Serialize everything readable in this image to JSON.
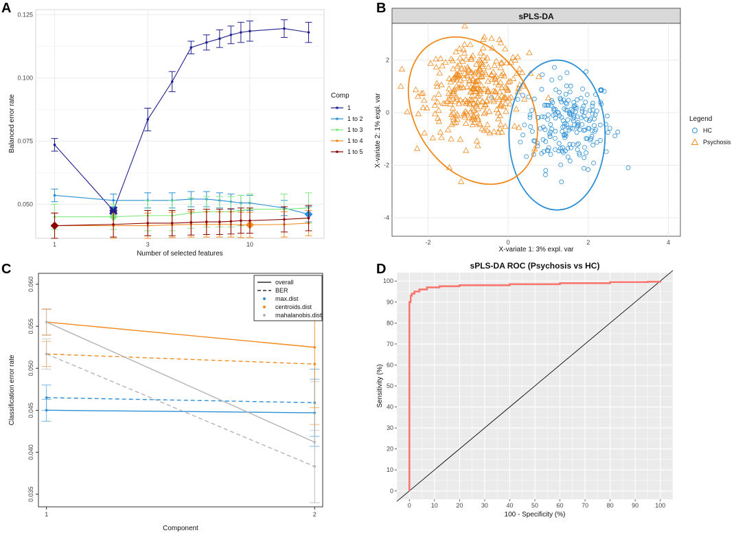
{
  "panel_labels": {
    "A": "A",
    "B": "B",
    "C": "C",
    "D": "D"
  },
  "chart_data": [
    {
      "id": "A",
      "type": "line",
      "xlabel": "Number of selected features",
      "ylabel": "Balanced error rate",
      "xscale": "log",
      "xticks": [
        1,
        3,
        10
      ],
      "yticks": [
        0.05,
        0.075,
        0.1,
        0.125
      ],
      "ytick_labels": [
        "0.050",
        "0.075",
        "0.100",
        "0.125"
      ],
      "ylim": [
        0.0365,
        0.127
      ],
      "xlim": [
        0.8,
        24
      ],
      "legend_title": "Comp",
      "x": [
        1,
        2,
        3,
        4,
        5,
        6,
        7,
        8,
        9,
        10,
        15,
        20
      ],
      "series": [
        {
          "name": "1",
          "color": "#1f1f8f",
          "values": [
            0.0735,
            0.0475,
            0.0835,
            0.0985,
            0.112,
            0.114,
            0.1155,
            0.117,
            0.118,
            0.1185,
            0.1195,
            0.118
          ],
          "err": [
            0.0025,
            0.0015,
            0.0045,
            0.004,
            0.0025,
            0.003,
            0.0035,
            0.0035,
            0.004,
            0.004,
            0.0035,
            0.004
          ],
          "opt_x": 2
        },
        {
          "name": "1 to 2",
          "color": "#2b8fd6",
          "values": [
            0.0535,
            0.0515,
            0.0515,
            0.0515,
            0.052,
            0.052,
            0.0515,
            0.051,
            0.0505,
            0.0505,
            0.0485,
            0.046
          ],
          "err": [
            0.0025,
            0.0025,
            0.003,
            0.003,
            0.003,
            0.003,
            0.003,
            0.003,
            0.003,
            0.003,
            0.003,
            0.003
          ],
          "opt_x": 20
        },
        {
          "name": "1 to 3",
          "color": "#7be87b",
          "values": [
            0.045,
            0.045,
            0.0455,
            0.0455,
            0.0465,
            0.047,
            0.047,
            0.047,
            0.0475,
            0.048,
            0.048,
            0.0485
          ],
          "err": [
            0.005,
            0.005,
            0.006,
            0.006,
            0.006,
            0.006,
            0.006,
            0.006,
            0.006,
            0.006,
            0.006,
            0.006
          ],
          "opt_x": 2
        },
        {
          "name": "1 to 4",
          "color": "#f08a1c",
          "values": [
            0.0415,
            0.0415,
            0.0415,
            0.0418,
            0.042,
            0.042,
            0.042,
            0.042,
            0.0418,
            0.0418,
            0.042,
            0.0425
          ],
          "err": [
            0.005,
            0.005,
            0.005,
            0.005,
            0.005,
            0.005,
            0.005,
            0.005,
            0.005,
            0.005,
            0.005,
            0.005
          ],
          "opt_x": 10
        },
        {
          "name": "1 to 5",
          "color": "#8b0000",
          "values": [
            0.0415,
            0.042,
            0.0425,
            0.0425,
            0.0428,
            0.043,
            0.043,
            0.0432,
            0.0435,
            0.0435,
            0.044,
            0.0445
          ],
          "err": [
            0.005,
            0.005,
            0.005,
            0.005,
            0.005,
            0.005,
            0.005,
            0.005,
            0.005,
            0.005,
            0.005,
            0.005
          ],
          "opt_x": 1
        }
      ]
    },
    {
      "id": "B",
      "type": "scatter",
      "title": "sPLS-DA",
      "xlabel": "X-variate 1: 3% expl. var",
      "ylabel": "X-variate 2: 1% expl. var",
      "xlim": [
        -2.9,
        4.3
      ],
      "ylim": [
        -4.7,
        3.4
      ],
      "xticks": [
        -2,
        0,
        2,
        4
      ],
      "yticks": [
        -4,
        -2,
        0,
        2
      ],
      "legend_title": "Legend",
      "groups": [
        {
          "name": "HC",
          "color": "#2b8fd6",
          "marker": "circle",
          "n": 210,
          "center": [
            1.5,
            -0.4
          ],
          "spread": [
            0.55,
            0.85
          ],
          "ellipse": {
            "cx": 1.22,
            "cy": -0.85,
            "rx": 1.2,
            "ry": 2.85,
            "angle": 0
          }
        },
        {
          "name": "Psychosis",
          "color": "#f08a1c",
          "marker": "triangle",
          "n": 320,
          "center": [
            -0.8,
            0.8
          ],
          "spread": [
            0.65,
            0.85
          ],
          "ellipse": {
            "cx": -0.88,
            "cy": 0.08,
            "rx": 1.45,
            "ry": 3.0,
            "angle": -32
          }
        }
      ]
    },
    {
      "id": "C",
      "type": "line",
      "xlabel": "Component",
      "ylabel": "Classification error rate",
      "x": [
        1,
        2
      ],
      "xticks": [
        1,
        2
      ],
      "xlim": [
        0.97,
        2.03
      ],
      "yticks": [
        0.035,
        0.04,
        0.045,
        0.05,
        0.055,
        0.06
      ],
      "ytick_labels": [
        "0.035",
        "0.040",
        "0.045",
        "0.050",
        "0.055",
        "0.060"
      ],
      "ylim": [
        0.0335,
        0.0613
      ],
      "legend": {
        "overall": "overall",
        "ber": "BER",
        "max_dist": "max.dist",
        "centroids_dist": "centroids.dist",
        "mahalanobis_dist": "mahalanobis.dist"
      },
      "series": [
        {
          "name": "max.dist overall",
          "color": "#2b8fd6",
          "dash": false,
          "values": [
            0.045,
            0.0447
          ],
          "err": [
            0.0013,
            0.004
          ]
        },
        {
          "name": "max.dist BER",
          "color": "#2b8fd6",
          "dash": true,
          "values": [
            0.0465,
            0.0459
          ],
          "err": [
            0.0015,
            0.004
          ]
        },
        {
          "name": "centroids.dist overall",
          "color": "#f08a1c",
          "dash": false,
          "values": [
            0.0555,
            0.0525
          ],
          "err": [
            0.0015,
            0.0072
          ]
        },
        {
          "name": "centroids.dist BER",
          "color": "#f08a1c",
          "dash": true,
          "values": [
            0.0517,
            0.0505
          ],
          "err": [
            0.0015,
            0.0072
          ]
        },
        {
          "name": "mahalanobis.dist overall",
          "color": "#b3b3b3",
          "dash": false,
          "values": [
            0.0555,
            0.0412
          ],
          "err": [
            0.0016,
            0.0072
          ]
        },
        {
          "name": "mahalanobis.dist BER",
          "color": "#b3b3b3",
          "dash": true,
          "values": [
            0.0517,
            0.0383
          ],
          "err": [
            0.0018,
            0.0043
          ]
        }
      ]
    },
    {
      "id": "D",
      "type": "line",
      "title": "sPLS-DA ROC (Psychosis vs HC)",
      "xlabel": "100 - Specificity (%)",
      "ylabel": "Sensitivity (%)",
      "xlim": [
        -5,
        105
      ],
      "ylim": [
        -4,
        104
      ],
      "xticks": [
        0,
        10,
        20,
        30,
        40,
        50,
        60,
        70,
        80,
        90,
        100
      ],
      "yticks": [
        0,
        10,
        20,
        30,
        40,
        50,
        60,
        70,
        80,
        90,
        100
      ],
      "roc": {
        "color": "#f8766d",
        "x": [
          0,
          0,
          0.5,
          0.5,
          1,
          1,
          2,
          2,
          4,
          4,
          7,
          7,
          12,
          12,
          20,
          20,
          40,
          40,
          60,
          60,
          80,
          80,
          95,
          95,
          100,
          100
        ],
        "y": [
          0,
          90,
          90,
          93,
          93,
          94,
          94,
          95,
          95,
          96,
          96,
          97,
          97,
          97.5,
          97.5,
          98,
          98,
          98.5,
          98.5,
          99,
          99,
          99.5,
          99.5,
          99.7,
          99.7,
          100
        ]
      },
      "diagonal": {
        "color": "#000000",
        "x": [
          0,
          100
        ],
        "y": [
          0,
          100
        ]
      }
    }
  ]
}
